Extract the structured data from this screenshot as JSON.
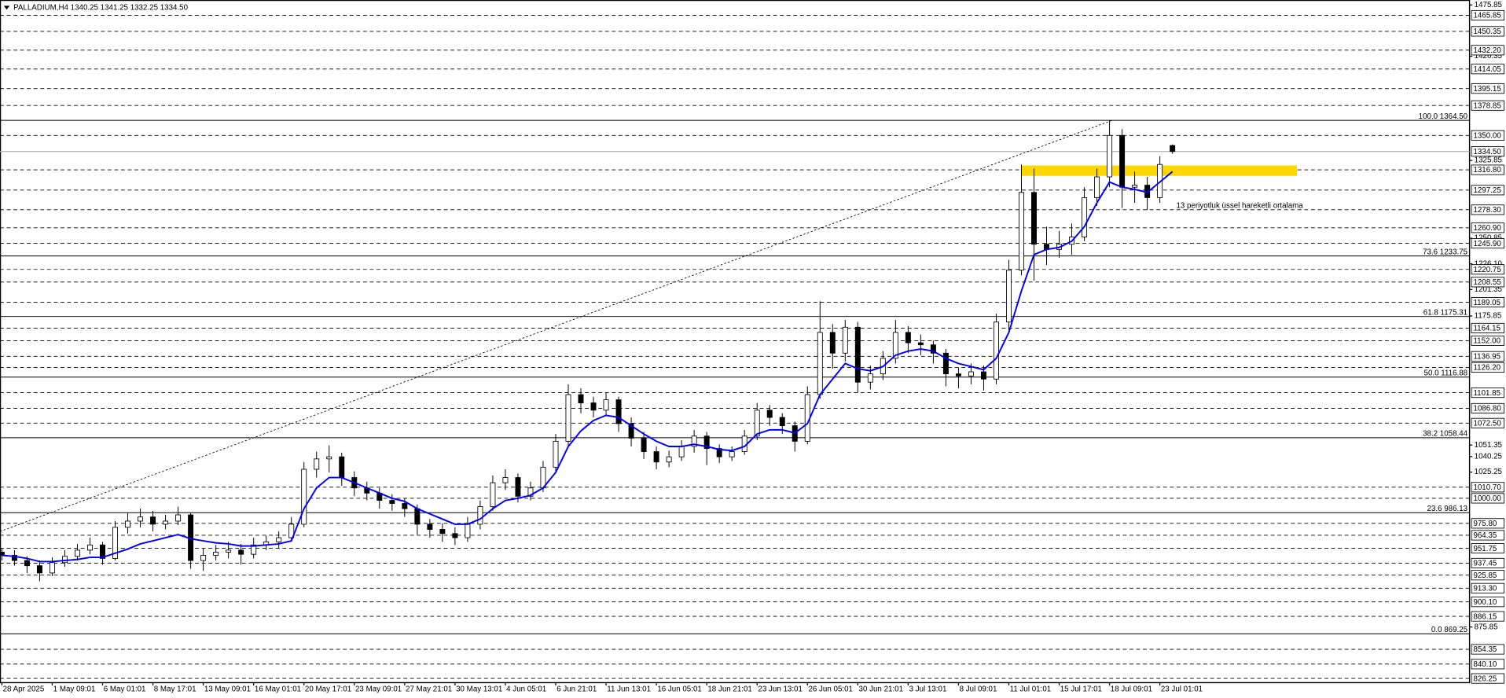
{
  "chart_data": {
    "type": "candlestick",
    "title": "PALLADIUM,H4  1340.25 1341.25 1332.25 1334.50",
    "ylim": [
      822.2,
      1480.6
    ],
    "xlim": [
      -0.15,
      116.6
    ],
    "yticks": [
      1475.85,
      1426.35,
      1325.85,
      1250.85,
      {
        "value": 1226.1,
        "label": "1226.10"
      },
      1201.35,
      1175.85,
      1051.35,
      1025.25,
      1040.25,
      875.85
    ],
    "levels": [
      1465.85,
      1450.35,
      {
        "value": 1432.2,
        "label": "1432.20"
      },
      1414.05,
      1395.15,
      1378.85,
      {
        "value": 1350,
        "label": "1350.00"
      },
      {
        "value": 1316.8,
        "label": "1316.80"
      },
      1297.25,
      {
        "value": 1278.3,
        "label": "1278.30"
      },
      {
        "value": 1260.9,
        "label": "1260.90"
      },
      {
        "value": 1245.9,
        "label": "1245.90"
      },
      1220.75,
      1208.55,
      1189.05,
      1164.15,
      {
        "value": 1152,
        "label": "1152.00"
      },
      1136.95,
      {
        "value": 1126.2,
        "label": "1126.20"
      },
      1101.85,
      {
        "value": 1086.8,
        "label": "1086.80"
      },
      {
        "value": 1072.5,
        "label": "1072.50"
      },
      {
        "value": 1010.7,
        "label": "1010.70"
      },
      {
        "value": 1000,
        "label": "1000.00"
      },
      {
        "value": 975.8,
        "label": "975.80"
      },
      964.35,
      951.75,
      937.45,
      925.85,
      {
        "value": 913.3,
        "label": "913.30"
      },
      {
        "value": 900.1,
        "label": "900.10"
      },
      886.15,
      854.35,
      {
        "value": 840.1,
        "label": "840.10"
      },
      826.25
    ],
    "price_line": {
      "value": 1334.5,
      "label": "1334.50"
    },
    "fibo": [
      {
        "value": 1364.5,
        "label": "100.0 1364.50"
      },
      {
        "value": 1233.75,
        "label": "73.6 1233.75"
      },
      {
        "value": 1175.31,
        "label": "61.8 1175.31"
      },
      {
        "value": 1116.88,
        "label": "50.0 1116.88"
      },
      {
        "value": 1058.44,
        "label": "38.2 1058.44"
      },
      {
        "value": 986.13,
        "label": "23.6 986.13"
      },
      {
        "value": 869.25,
        "label": "0.0 869.25"
      }
    ],
    "xticks": [
      {
        "value": 0,
        "label": "28 Apr 2025"
      },
      {
        "value": 4,
        "label": "1 May 09:01"
      },
      {
        "value": 8,
        "label": "6 May 01:01"
      },
      {
        "value": 12,
        "label": "8 May 17:01"
      },
      {
        "value": 16,
        "label": "13 May 09:01"
      },
      {
        "value": 20,
        "label": "16 May 01:01"
      },
      {
        "value": 24,
        "label": "20 May 17:01"
      },
      {
        "value": 28,
        "label": "23 May 09:01"
      },
      {
        "value": 32,
        "label": "27 May 21:01"
      },
      {
        "value": 36,
        "label": "30 May 13:01"
      },
      {
        "value": 40,
        "label": "4 Jun 05:01"
      },
      {
        "value": 44,
        "label": "6 Jun 21:01"
      },
      {
        "value": 48,
        "label": "11 Jun 13:01"
      },
      {
        "value": 52,
        "label": "16 Jun 05:01"
      },
      {
        "value": 56,
        "label": "18 Jun 21:01"
      },
      {
        "value": 60,
        "label": "23 Jun 13:01"
      },
      {
        "value": 64,
        "label": "26 Jun 05:01"
      },
      {
        "value": 68,
        "label": "30 Jun 21:01"
      },
      {
        "value": 72,
        "label": "3 Jul 13:01"
      },
      {
        "value": 76,
        "label": "8 Jul 09:01"
      },
      {
        "value": 80,
        "label": "11 Jul 01:01"
      },
      {
        "value": 84,
        "label": "15 Jul 17:01"
      },
      {
        "value": 88,
        "label": "18 Jul 09:01"
      },
      {
        "value": 92,
        "label": "23 Jul 01:01"
      }
    ],
    "ohlc": [
      [
        948,
        952,
        940,
        945
      ],
      [
        945,
        950,
        935,
        940
      ],
      [
        940,
        944,
        928,
        935
      ],
      [
        935,
        940,
        920,
        928
      ],
      [
        928,
        943,
        925,
        938
      ],
      [
        938,
        950,
        934,
        944
      ],
      [
        944,
        956,
        940,
        950
      ],
      [
        950,
        962,
        946,
        955
      ],
      [
        955,
        958,
        936,
        942
      ],
      [
        942,
        978,
        940,
        972
      ],
      [
        972,
        986,
        966,
        978
      ],
      [
        978,
        990,
        972,
        982
      ],
      [
        982,
        988,
        968,
        975
      ],
      [
        975,
        984,
        970,
        978
      ],
      [
        978,
        992,
        974,
        984
      ],
      [
        984,
        986,
        932,
        940
      ],
      [
        940,
        952,
        930,
        945
      ],
      [
        945,
        955,
        940,
        948
      ],
      [
        948,
        958,
        942,
        950
      ],
      [
        950,
        956,
        936,
        946
      ],
      [
        946,
        962,
        942,
        955
      ],
      [
        955,
        964,
        950,
        958
      ],
      [
        958,
        968,
        952,
        962
      ],
      [
        962,
        982,
        958,
        975
      ],
      [
        975,
        1035,
        972,
        1028
      ],
      [
        1028,
        1045,
        1020,
        1038
      ],
      [
        1038,
        1051,
        1025,
        1040
      ],
      [
        1040,
        1044,
        1012,
        1020
      ],
      [
        1020,
        1026,
        1002,
        1010
      ],
      [
        1010,
        1016,
        998,
        1005
      ],
      [
        1005,
        1010,
        990,
        998
      ],
      [
        998,
        1004,
        988,
        995
      ],
      [
        995,
        1000,
        982,
        990
      ],
      [
        990,
        994,
        965,
        975
      ],
      [
        975,
        980,
        962,
        970
      ],
      [
        970,
        976,
        958,
        966
      ],
      [
        966,
        972,
        955,
        962
      ],
      [
        962,
        982,
        958,
        975
      ],
      [
        975,
        998,
        970,
        992
      ],
      [
        992,
        1022,
        988,
        1015
      ],
      [
        1015,
        1028,
        1008,
        1020
      ],
      [
        1020,
        1024,
        996,
        1002
      ],
      [
        1002,
        1016,
        998,
        1010
      ],
      [
        1010,
        1036,
        1006,
        1030
      ],
      [
        1030,
        1062,
        1026,
        1055
      ],
      [
        1055,
        1110,
        1050,
        1100
      ],
      [
        1100,
        1106,
        1082,
        1092
      ],
      [
        1092,
        1098,
        1078,
        1085
      ],
      [
        1085,
        1102,
        1080,
        1095
      ],
      [
        1095,
        1098,
        1064,
        1072
      ],
      [
        1072,
        1078,
        1050,
        1058
      ],
      [
        1058,
        1064,
        1038,
        1045
      ],
      [
        1045,
        1050,
        1028,
        1035
      ],
      [
        1035,
        1046,
        1030,
        1040
      ],
      [
        1040,
        1056,
        1036,
        1050
      ],
      [
        1050,
        1066,
        1044,
        1060
      ],
      [
        1060,
        1064,
        1032,
        1048
      ],
      [
        1048,
        1052,
        1034,
        1040
      ],
      [
        1040,
        1050,
        1036,
        1045
      ],
      [
        1045,
        1066,
        1042,
        1060
      ],
      [
        1060,
        1092,
        1056,
        1085
      ],
      [
        1085,
        1090,
        1070,
        1078
      ],
      [
        1078,
        1082,
        1062,
        1070
      ],
      [
        1070,
        1074,
        1045,
        1055
      ],
      [
        1055,
        1108,
        1052,
        1100
      ],
      [
        1100,
        1190,
        1096,
        1160
      ],
      [
        1160,
        1168,
        1125,
        1140
      ],
      [
        1140,
        1172,
        1132,
        1165
      ],
      [
        1165,
        1170,
        1102,
        1112
      ],
      [
        1112,
        1128,
        1105,
        1120
      ],
      [
        1120,
        1142,
        1114,
        1135
      ],
      [
        1135,
        1172,
        1130,
        1160
      ],
      [
        1160,
        1166,
        1140,
        1150
      ],
      [
        1150,
        1158,
        1138,
        1148
      ],
      [
        1148,
        1152,
        1130,
        1140
      ],
      [
        1140,
        1144,
        1108,
        1120
      ],
      [
        1120,
        1126,
        1106,
        1118
      ],
      [
        1118,
        1130,
        1110,
        1122
      ],
      [
        1122,
        1128,
        1104,
        1115
      ],
      [
        1115,
        1178,
        1110,
        1170
      ],
      [
        1170,
        1230,
        1162,
        1220
      ],
      [
        1220,
        1322,
        1215,
        1295
      ],
      [
        1295,
        1318,
        1210,
        1245
      ],
      [
        1245,
        1262,
        1225,
        1240
      ],
      [
        1240,
        1258,
        1232,
        1245
      ],
      [
        1245,
        1265,
        1235,
        1252
      ],
      [
        1252,
        1300,
        1248,
        1290
      ],
      [
        1290,
        1318,
        1282,
        1310
      ],
      [
        1310,
        1364.5,
        1300,
        1350
      ],
      [
        1350,
        1356,
        1280,
        1300
      ],
      [
        1300,
        1315,
        1285,
        1302
      ],
      [
        1302,
        1310,
        1278,
        1290
      ],
      [
        1290,
        1330,
        1285,
        1322
      ],
      [
        1340.25,
        1341.25,
        1332.25,
        1334.5
      ]
    ],
    "ema": {
      "color": "#0000ff",
      "values": [
        945,
        944,
        942,
        939,
        939,
        940,
        941,
        943,
        943,
        947,
        951,
        956,
        959,
        962,
        965,
        961,
        959,
        957,
        956,
        954,
        954,
        955,
        956,
        959,
        990,
        1010,
        1020,
        1020,
        1015,
        1010,
        1005,
        1000,
        997,
        990,
        985,
        980,
        975,
        975,
        980,
        990,
        998,
        1000,
        1003,
        1010,
        1025,
        1050,
        1065,
        1075,
        1080,
        1078,
        1070,
        1062,
        1055,
        1050,
        1050,
        1052,
        1050,
        1047,
        1046,
        1050,
        1062,
        1066,
        1066,
        1063,
        1072,
        1100,
        1115,
        1130,
        1125,
        1123,
        1127,
        1138,
        1142,
        1144,
        1142,
        1135,
        1130,
        1127,
        1124,
        1135,
        1160,
        1200,
        1235,
        1240,
        1242,
        1248,
        1262,
        1285,
        1305,
        1300,
        1298,
        1295,
        1305,
        1315
      ]
    },
    "trendline": {
      "x": [
        -0.15,
        88.2
      ],
      "y": [
        968,
        1364.5
      ]
    },
    "zone": {
      "x": [
        81,
        102.9
      ],
      "y": [
        1311,
        1321
      ],
      "color": "#ffd700"
    },
    "annotation": {
      "text": "13 periyotluk üssel hareketli ortalama",
      "x": 93.3,
      "y": 1282,
      "color": "#3333cc"
    }
  }
}
